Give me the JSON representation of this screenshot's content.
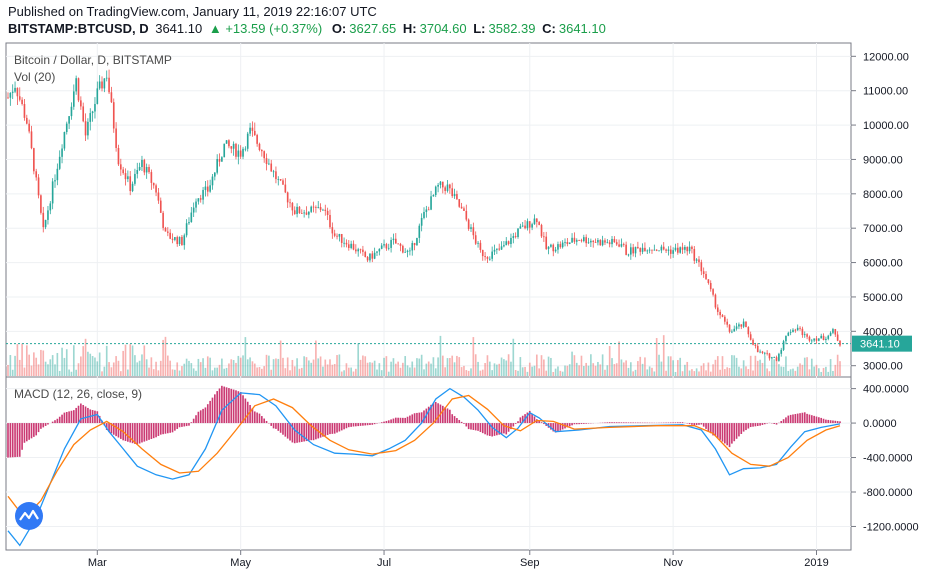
{
  "header": {
    "published": "Published on TradingView.com, January 11, 2019 22:16:07 UTC",
    "symbol": "BITSTAMP:BTCUSD, D",
    "last": "3641.10",
    "change": "+13.59 (+0.37%)",
    "o_label": "O:",
    "o_value": "3627.65",
    "h_label": "H:",
    "h_value": "3704.60",
    "l_label": "L:",
    "l_value": "3582.39",
    "c_label": "C:",
    "c_value": "3641.10"
  },
  "colors": {
    "up": "#26a69a",
    "down": "#ef5350",
    "macd": "#2196f3",
    "signal": "#ff7f0e",
    "hist": "#c2185b",
    "last_label": "#26a69a"
  },
  "chart_data": [
    {
      "type": "candlestick",
      "title": "Bitcoin / Dollar, D, BITSTAMP",
      "volume_label": "Vol (20)",
      "last_price": 3641.1,
      "last_price_label": "3641.10",
      "ylim": [
        2700,
        12300
      ],
      "y_ticks": [
        3000,
        4000,
        5000,
        6000,
        7000,
        8000,
        9000,
        10000,
        11000,
        12000
      ],
      "y_tick_labels": [
        "3000.00",
        "4000.00",
        "5000.00",
        "6000.00",
        "7000.00",
        "8000.00",
        "9000.00",
        "10000.00",
        "11000.00",
        "12000.00"
      ],
      "x_range": [
        "2018-01-22",
        "2019-01-11"
      ],
      "x_ticks": [
        "2018-03-01",
        "2018-05-01",
        "2018-07-01",
        "2018-09-01",
        "2018-11-01",
        "2019-01-01"
      ],
      "x_tick_labels": [
        "Mar",
        "May",
        "Jul",
        "Sep",
        "Nov",
        "2019"
      ],
      "price_path": [
        [
          "2018-01-22",
          10800
        ],
        [
          "2018-01-25",
          11200
        ],
        [
          "2018-01-30",
          10100
        ],
        [
          "2018-02-02",
          8800
        ],
        [
          "2018-02-06",
          6900
        ],
        [
          "2018-02-10",
          8200
        ],
        [
          "2018-02-14",
          9500
        ],
        [
          "2018-02-20",
          11300
        ],
        [
          "2018-02-24",
          9700
        ],
        [
          "2018-03-01",
          10900
        ],
        [
          "2018-03-05",
          11500
        ],
        [
          "2018-03-10",
          9000
        ],
        [
          "2018-03-15",
          8200
        ],
        [
          "2018-03-20",
          8900
        ],
        [
          "2018-03-26",
          8100
        ],
        [
          "2018-03-30",
          6800
        ],
        [
          "2018-04-06",
          6600
        ],
        [
          "2018-04-12",
          7900
        ],
        [
          "2018-04-17",
          8100
        ],
        [
          "2018-04-24",
          9400
        ],
        [
          "2018-05-01",
          9200
        ],
        [
          "2018-05-05",
          9800
        ],
        [
          "2018-05-10",
          9300
        ],
        [
          "2018-05-15",
          8600
        ],
        [
          "2018-05-24",
          7500
        ],
        [
          "2018-05-31",
          7500
        ],
        [
          "2018-06-05",
          7600
        ],
        [
          "2018-06-10",
          6800
        ],
        [
          "2018-06-17",
          6500
        ],
        [
          "2018-06-24",
          6100
        ],
        [
          "2018-06-30",
          6400
        ],
        [
          "2018-07-05",
          6600
        ],
        [
          "2018-07-12",
          6250
        ],
        [
          "2018-07-18",
          7400
        ],
        [
          "2018-07-24",
          8200
        ],
        [
          "2018-07-28",
          8200
        ],
        [
          "2018-08-04",
          7400
        ],
        [
          "2018-08-11",
          6300
        ],
        [
          "2018-08-14",
          6200
        ],
        [
          "2018-08-20",
          6400
        ],
        [
          "2018-08-27",
          6900
        ],
        [
          "2018-09-04",
          7300
        ],
        [
          "2018-09-08",
          6400
        ],
        [
          "2018-09-14",
          6500
        ],
        [
          "2018-09-22",
          6700
        ],
        [
          "2018-10-01",
          6600
        ],
        [
          "2018-10-10",
          6550
        ],
        [
          "2018-10-12",
          6300
        ],
        [
          "2018-10-20",
          6450
        ],
        [
          "2018-10-31",
          6350
        ],
        [
          "2018-11-08",
          6400
        ],
        [
          "2018-11-14",
          5700
        ],
        [
          "2018-11-20",
          4600
        ],
        [
          "2018-11-25",
          4000
        ],
        [
          "2018-12-01",
          4200
        ],
        [
          "2018-12-07",
          3400
        ],
        [
          "2018-12-15",
          3200
        ],
        [
          "2018-12-20",
          4000
        ],
        [
          "2018-12-24",
          4100
        ],
        [
          "2018-12-28",
          3800
        ],
        [
          "2019-01-04",
          3800
        ],
        [
          "2019-01-08",
          4000
        ],
        [
          "2019-01-11",
          3641.1
        ]
      ]
    },
    {
      "type": "line",
      "title": "MACD (12, 26, close, 9)",
      "ylim": [
        -1450,
        500
      ],
      "y_ticks": [
        -1200,
        -800,
        -400,
        0,
        400
      ],
      "y_tick_labels": [
        "-1200.0000",
        "-800.0000",
        "-400.0000",
        "0.0000",
        "400.0000"
      ],
      "series": [
        {
          "name": "MACD",
          "points": [
            [
              "2018-01-22",
              -1250
            ],
            [
              "2018-01-27",
              -1420
            ],
            [
              "2018-02-03",
              -1100
            ],
            [
              "2018-02-09",
              -700
            ],
            [
              "2018-02-15",
              -300
            ],
            [
              "2018-02-22",
              50
            ],
            [
              "2018-03-01",
              100
            ],
            [
              "2018-03-06",
              -100
            ],
            [
              "2018-03-12",
              -300
            ],
            [
              "2018-03-18",
              -500
            ],
            [
              "2018-03-26",
              -600
            ],
            [
              "2018-04-02",
              -650
            ],
            [
              "2018-04-09",
              -600
            ],
            [
              "2018-04-16",
              -300
            ],
            [
              "2018-04-23",
              150
            ],
            [
              "2018-05-01",
              350
            ],
            [
              "2018-05-09",
              330
            ],
            [
              "2018-05-16",
              200
            ],
            [
              "2018-05-24",
              -80
            ],
            [
              "2018-06-01",
              -250
            ],
            [
              "2018-06-10",
              -350
            ],
            [
              "2018-06-18",
              -360
            ],
            [
              "2018-06-26",
              -380
            ],
            [
              "2018-07-03",
              -300
            ],
            [
              "2018-07-10",
              -200
            ],
            [
              "2018-07-17",
              0
            ],
            [
              "2018-07-23",
              280
            ],
            [
              "2018-07-29",
              400
            ],
            [
              "2018-08-04",
              300
            ],
            [
              "2018-08-10",
              150
            ],
            [
              "2018-08-16",
              -50
            ],
            [
              "2018-08-22",
              -170
            ],
            [
              "2018-08-27",
              -60
            ],
            [
              "2018-09-01",
              120
            ],
            [
              "2018-09-05",
              60
            ],
            [
              "2018-09-12",
              -100
            ],
            [
              "2018-09-22",
              -80
            ],
            [
              "2018-10-05",
              -40
            ],
            [
              "2018-10-20",
              -30
            ],
            [
              "2018-11-05",
              -20
            ],
            [
              "2018-11-13",
              -80
            ],
            [
              "2018-11-19",
              -300
            ],
            [
              "2018-11-25",
              -600
            ],
            [
              "2018-12-01",
              -530
            ],
            [
              "2018-12-08",
              -520
            ],
            [
              "2018-12-15",
              -480
            ],
            [
              "2018-12-21",
              -280
            ],
            [
              "2018-12-27",
              -100
            ],
            [
              "2019-01-03",
              -50
            ],
            [
              "2019-01-11",
              -10
            ]
          ]
        },
        {
          "name": "Signal",
          "points": [
            [
              "2018-01-22",
              -850
            ],
            [
              "2018-01-29",
              -1100
            ],
            [
              "2018-02-05",
              -900
            ],
            [
              "2018-02-12",
              -550
            ],
            [
              "2018-02-19",
              -250
            ],
            [
              "2018-02-26",
              -80
            ],
            [
              "2018-03-05",
              20
            ],
            [
              "2018-03-12",
              -100
            ],
            [
              "2018-03-20",
              -300
            ],
            [
              "2018-03-28",
              -480
            ],
            [
              "2018-04-05",
              -580
            ],
            [
              "2018-04-13",
              -560
            ],
            [
              "2018-04-21",
              -350
            ],
            [
              "2018-04-29",
              -80
            ],
            [
              "2018-05-07",
              200
            ],
            [
              "2018-05-15",
              280
            ],
            [
              "2018-05-23",
              180
            ],
            [
              "2018-05-31",
              -30
            ],
            [
              "2018-06-08",
              -200
            ],
            [
              "2018-06-16",
              -310
            ],
            [
              "2018-06-26",
              -360
            ],
            [
              "2018-07-06",
              -320
            ],
            [
              "2018-07-14",
              -200
            ],
            [
              "2018-07-22",
              0
            ],
            [
              "2018-07-30",
              280
            ],
            [
              "2018-08-06",
              320
            ],
            [
              "2018-08-14",
              160
            ],
            [
              "2018-08-21",
              -30
            ],
            [
              "2018-08-28",
              -90
            ],
            [
              "2018-09-04",
              30
            ],
            [
              "2018-09-11",
              20
            ],
            [
              "2018-09-20",
              -70
            ],
            [
              "2018-10-05",
              -50
            ],
            [
              "2018-10-25",
              -30
            ],
            [
              "2018-11-10",
              -30
            ],
            [
              "2018-11-18",
              -120
            ],
            [
              "2018-11-26",
              -350
            ],
            [
              "2018-12-04",
              -480
            ],
            [
              "2018-12-12",
              -500
            ],
            [
              "2018-12-20",
              -400
            ],
            [
              "2018-12-28",
              -200
            ],
            [
              "2019-01-05",
              -80
            ],
            [
              "2019-01-11",
              -30
            ]
          ]
        }
      ]
    }
  ]
}
